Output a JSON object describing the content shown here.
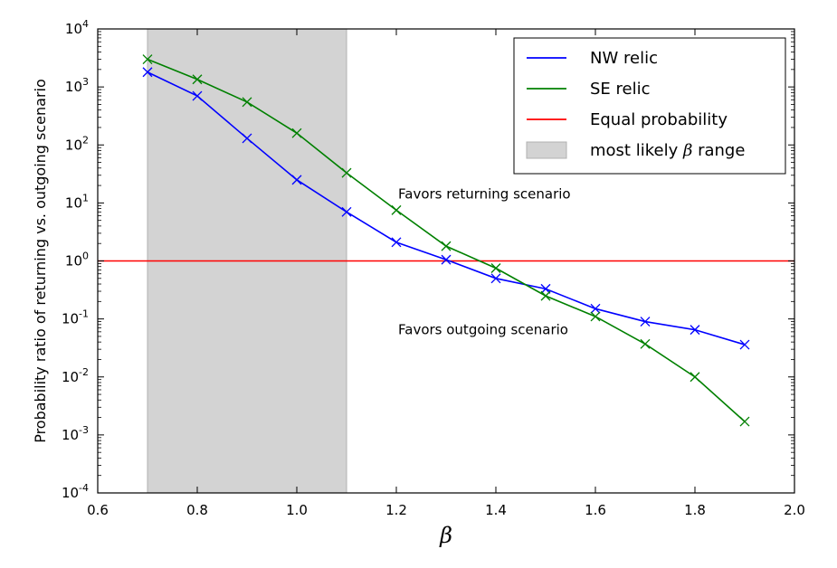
{
  "chart_data": {
    "type": "line",
    "xlabel": "β",
    "ylabel": "Probability ratio of returning vs. outgoing scenario",
    "xlim": [
      0.6,
      2.0
    ],
    "ylim": [
      0.0001,
      10000
    ],
    "yscale": "log",
    "x_ticks": [
      "0.6",
      "0.8",
      "1.0",
      "1.2",
      "1.4",
      "1.6",
      "1.8",
      "2.0"
    ],
    "y_ticks": [
      {
        "base": "10",
        "exp": "-4",
        "value": 0.0001
      },
      {
        "base": "10",
        "exp": "-3",
        "value": 0.001
      },
      {
        "base": "10",
        "exp": "-2",
        "value": 0.01
      },
      {
        "base": "10",
        "exp": "-1",
        "value": 0.1
      },
      {
        "base": "10",
        "exp": "0",
        "value": 1
      },
      {
        "base": "10",
        "exp": "1",
        "value": 10
      },
      {
        "base": "10",
        "exp": "2",
        "value": 100
      },
      {
        "base": "10",
        "exp": "3",
        "value": 1000
      },
      {
        "base": "10",
        "exp": "4",
        "value": 10000
      }
    ],
    "x": [
      0.7,
      0.8,
      0.9,
      1.0,
      1.1,
      1.2,
      1.3,
      1.4,
      1.5,
      1.6,
      1.7,
      1.8,
      1.9
    ],
    "series": [
      {
        "name": "NW relic",
        "color": "#0000ff",
        "marker": "x",
        "values": [
          1800,
          700,
          130,
          25,
          7,
          2.1,
          1.05,
          0.5,
          0.33,
          0.15,
          0.09,
          0.065,
          0.036
        ]
      },
      {
        "name": "SE relic",
        "color": "#008000",
        "marker": "x",
        "values": [
          3000,
          1350,
          550,
          160,
          33,
          7.5,
          1.8,
          0.75,
          0.25,
          0.11,
          0.037,
          0.01,
          0.0017
        ]
      }
    ],
    "reference_line": {
      "name": "Equal probability",
      "value": 1,
      "color": "#ff0000"
    },
    "shaded_range": {
      "name_prefix": "most likely ",
      "name_symbol": "β",
      "name_suffix": " range",
      "x_from": 0.7,
      "x_to": 1.1,
      "color": "#d3d3d3"
    },
    "annotations": [
      {
        "text": "Favors returning scenario",
        "x": 1.2,
        "y": 12
      },
      {
        "text": "Favors outgoing scenario",
        "x": 1.2,
        "y": 0.055
      }
    ],
    "legend_position": "top-right",
    "grid": false
  }
}
